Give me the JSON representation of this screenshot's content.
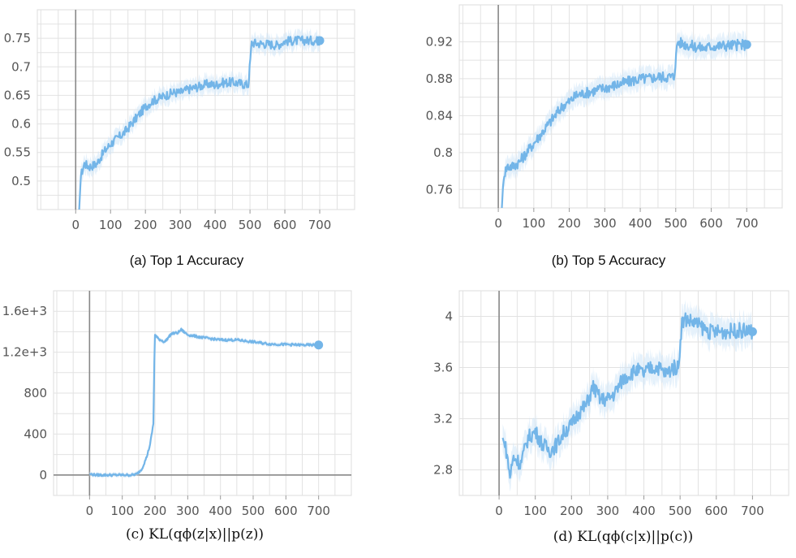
{
  "charts": [
    {
      "id": "a",
      "caption": "(a) Top 1 Accuracy",
      "color": "#73b5e8",
      "band_color": "#cfe5f7",
      "xlim": [
        -110,
        800
      ],
      "ylim": [
        0.45,
        0.8
      ],
      "xticks": [
        0,
        100,
        200,
        300,
        400,
        500,
        600,
        700
      ],
      "xtick_labels": [
        "0",
        "100",
        "200",
        "300",
        "400",
        "500",
        "600",
        "700"
      ],
      "yticks": [
        0.5,
        0.55,
        0.6,
        0.65,
        0.7,
        0.75
      ],
      "ytick_labels": [
        "0.5",
        "0.55",
        "0.6",
        "0.65",
        "0.7",
        "0.75"
      ],
      "zero_line_y": false,
      "chart_data": {
        "type": "line",
        "noise": 0.008,
        "x": [
          10,
          15,
          25,
          40,
          60,
          80,
          100,
          120,
          140,
          160,
          180,
          200,
          220,
          250,
          280,
          300,
          320,
          350,
          380,
          400,
          420,
          450,
          480,
          495,
          505,
          520,
          550,
          580,
          600,
          640,
          700
        ],
        "y": [
          0.45,
          0.51,
          0.53,
          0.525,
          0.53,
          0.55,
          0.565,
          0.575,
          0.585,
          0.6,
          0.615,
          0.63,
          0.64,
          0.648,
          0.655,
          0.655,
          0.66,
          0.665,
          0.67,
          0.668,
          0.672,
          0.673,
          0.67,
          0.668,
          0.742,
          0.741,
          0.74,
          0.738,
          0.745,
          0.746,
          0.746
        ]
      }
    },
    {
      "id": "b",
      "caption": "(b) Top 5 Accuracy",
      "color": "#73b5e8",
      "band_color": "#cfe5f7",
      "xlim": [
        -110,
        800
      ],
      "ylim": [
        0.74,
        0.96
      ],
      "xticks": [
        0,
        100,
        200,
        300,
        400,
        500,
        600,
        700
      ],
      "xtick_labels": [
        "0",
        "100",
        "200",
        "300",
        "400",
        "500",
        "600",
        "700"
      ],
      "yticks": [
        0.76,
        0.8,
        0.84,
        0.88,
        0.92
      ],
      "ytick_labels": [
        "0.76",
        "0.8",
        "0.84",
        "0.88",
        "0.92"
      ],
      "zero_line_y": false,
      "chart_data": {
        "type": "line",
        "noise": 0.006,
        "x": [
          10,
          15,
          25,
          40,
          60,
          80,
          100,
          120,
          140,
          160,
          180,
          200,
          220,
          250,
          280,
          300,
          320,
          350,
          380,
          400,
          420,
          450,
          480,
          495,
          505,
          520,
          550,
          580,
          600,
          640,
          700
        ],
        "y": [
          0.74,
          0.775,
          0.785,
          0.785,
          0.79,
          0.8,
          0.81,
          0.82,
          0.83,
          0.84,
          0.85,
          0.855,
          0.862,
          0.865,
          0.868,
          0.87,
          0.872,
          0.875,
          0.878,
          0.88,
          0.88,
          0.882,
          0.882,
          0.882,
          0.92,
          0.918,
          0.915,
          0.913,
          0.915,
          0.916,
          0.917
        ]
      }
    },
    {
      "id": "c",
      "caption": "(c) KL(qϕ(z|x)||p(z))",
      "color": "#73b5e8",
      "band_color": "#cfe5f7",
      "xlim": [
        -110,
        800
      ],
      "ylim": [
        -200,
        1800
      ],
      "xticks": [
        0,
        100,
        200,
        300,
        400,
        500,
        600,
        700
      ],
      "xtick_labels": [
        "0",
        "100",
        "200",
        "300",
        "400",
        "500",
        "600",
        "700"
      ],
      "yticks": [
        0,
        400,
        800,
        1200,
        1600
      ],
      "ytick_labels": [
        "0",
        "400",
        "800",
        "1.2e+3",
        "1.6e+3"
      ],
      "zero_line_y": true,
      "chart_data": {
        "type": "line",
        "noise": 12,
        "x": [
          0,
          20,
          50,
          100,
          130,
          145,
          160,
          175,
          185,
          195,
          198,
          200,
          210,
          230,
          250,
          270,
          280,
          300,
          350,
          400,
          450,
          500,
          550,
          600,
          650,
          700
        ],
        "y": [
          10,
          0,
          0,
          0,
          0,
          10,
          60,
          180,
          300,
          500,
          1100,
          1370,
          1330,
          1300,
          1380,
          1390,
          1420,
          1370,
          1340,
          1320,
          1320,
          1300,
          1280,
          1275,
          1270,
          1270
        ]
      }
    },
    {
      "id": "d",
      "caption": "(d) KL(qϕ(c|x)||p(c))",
      "color": "#73b5e8",
      "band_color": "#cfe5f7",
      "xlim": [
        -110,
        800
      ],
      "ylim": [
        2.6,
        4.2
      ],
      "xticks": [
        0,
        100,
        200,
        300,
        400,
        500,
        600,
        700
      ],
      "xtick_labels": [
        "0",
        "100",
        "200",
        "300",
        "400",
        "500",
        "600",
        "700"
      ],
      "yticks": [
        2.8,
        3.2,
        3.6,
        4
      ],
      "ytick_labels": [
        "2.8",
        "3.2",
        "3.6",
        "4"
      ],
      "zero_line_y": false,
      "chart_data": {
        "type": "line",
        "noise": 0.06,
        "x": [
          10,
          20,
          30,
          40,
          60,
          80,
          100,
          120,
          140,
          160,
          180,
          200,
          220,
          240,
          260,
          280,
          300,
          320,
          340,
          360,
          380,
          400,
          420,
          440,
          460,
          480,
          495,
          505,
          515,
          540,
          580,
          620,
          660,
          700
        ],
        "y": [
          3.05,
          2.95,
          2.75,
          2.9,
          2.85,
          3.05,
          3.1,
          3.0,
          2.95,
          3.0,
          3.1,
          3.15,
          3.25,
          3.3,
          3.45,
          3.35,
          3.35,
          3.4,
          3.5,
          3.55,
          3.58,
          3.55,
          3.6,
          3.6,
          3.55,
          3.6,
          3.6,
          3.95,
          3.98,
          3.95,
          3.88,
          3.88,
          3.89,
          3.88
        ]
      }
    }
  ]
}
